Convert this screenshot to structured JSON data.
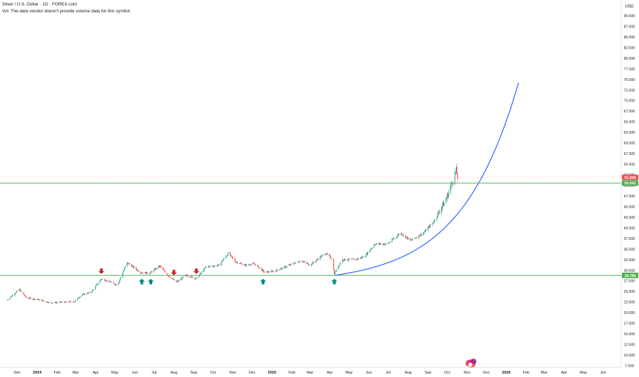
{
  "header": {
    "title": "Silver / U.S. Dollar · 1D · FOREX.com",
    "volume_note": "Vol: The data vendor doesn't provide volume data for this symbol."
  },
  "chart_data": {
    "type": "candlestick",
    "symbol": "Silver / U.S. Dollar",
    "interval": "1D",
    "source": "FOREX.com",
    "currency_label": "USD",
    "ylim": [
      7.5,
      92.5
    ],
    "y_ticks": [
      7.5,
      10,
      12.5,
      15,
      17.5,
      20,
      22.5,
      25,
      27.5,
      30,
      32.5,
      35,
      37.5,
      40,
      42.5,
      45,
      47.5,
      50,
      52.5,
      55,
      57.5,
      60,
      62.5,
      65,
      67.5,
      70,
      72.5,
      75,
      77.5,
      80,
      82.5,
      85,
      87.5,
      90
    ],
    "x_axis_labels": [
      "Dec",
      "2024",
      "Feb",
      "Mar",
      "Apr",
      "May",
      "Jun",
      "Jul",
      "Aug",
      "Sep",
      "Oct",
      "Nov",
      "Dec",
      "2025",
      "Feb",
      "Mar",
      "Apr",
      "May",
      "Jun",
      "Jul",
      "Aug",
      "Sep",
      "Oct",
      "Nov",
      "Dec",
      "2026",
      "Feb",
      "Mar",
      "Apr",
      "May",
      "Jun"
    ],
    "x_axis_bold": [
      "2024",
      "2025",
      "2026"
    ],
    "price_path": [
      [
        "2023-11-15",
        23.0
      ],
      [
        "2023-12-04",
        25.5
      ],
      [
        "2023-12-15",
        23.5
      ],
      [
        "2024-01-05",
        23.0
      ],
      [
        "2024-01-22",
        22.3
      ],
      [
        "2024-02-12",
        22.5
      ],
      [
        "2024-02-28",
        22.6
      ],
      [
        "2024-03-10",
        24.2
      ],
      [
        "2024-03-25",
        24.8
      ],
      [
        "2024-04-10",
        28.0
      ],
      [
        "2024-04-24",
        27.2
      ],
      [
        "2024-05-05",
        26.5
      ],
      [
        "2024-05-20",
        31.8
      ],
      [
        "2024-06-01",
        30.5
      ],
      [
        "2024-06-10",
        29.5
      ],
      [
        "2024-06-24",
        29.3
      ],
      [
        "2024-07-10",
        31.0
      ],
      [
        "2024-07-25",
        28.5
      ],
      [
        "2024-08-05",
        27.2
      ],
      [
        "2024-08-20",
        28.8
      ],
      [
        "2024-09-05",
        28.0
      ],
      [
        "2024-09-20",
        30.8
      ],
      [
        "2024-10-10",
        31.2
      ],
      [
        "2024-10-25",
        34.0
      ],
      [
        "2024-11-05",
        32.0
      ],
      [
        "2024-11-20",
        31.2
      ],
      [
        "2024-12-05",
        31.5
      ],
      [
        "2024-12-20",
        29.5
      ],
      [
        "2025-01-05",
        29.8
      ],
      [
        "2025-01-25",
        31.0
      ],
      [
        "2025-02-15",
        32.3
      ],
      [
        "2025-03-01",
        31.2
      ],
      [
        "2025-03-25",
        34.0
      ],
      [
        "2025-04-04",
        32.8
      ],
      [
        "2025-04-08",
        29.2
      ],
      [
        "2025-04-20",
        32.5
      ],
      [
        "2025-05-10",
        32.5
      ],
      [
        "2025-05-25",
        33.2
      ],
      [
        "2025-06-10",
        36.2
      ],
      [
        "2025-06-30",
        36.2
      ],
      [
        "2025-07-20",
        38.8
      ],
      [
        "2025-08-05",
        37.0
      ],
      [
        "2025-08-25",
        38.8
      ],
      [
        "2025-09-10",
        41.5
      ],
      [
        "2025-09-30",
        47.0
      ],
      [
        "2025-10-08",
        50.5
      ],
      [
        "2025-10-15",
        53.5
      ],
      [
        "2025-10-17",
        51.9
      ]
    ],
    "horizontal_lines": [
      {
        "price": 50.542,
        "label": "50.542",
        "color": "#4caf50"
      },
      {
        "price": 28.788,
        "label": "28.788",
        "color": "#4caf50"
      }
    ],
    "last_price": {
      "price": 51.898,
      "label": "51.898",
      "color": "#ef5350"
    },
    "curve": {
      "color": "#2962ff",
      "start": [
        "2025-04-08",
        28.8
      ],
      "end": [
        "2026-01-20",
        74.2
      ]
    },
    "markers_down": [
      "2024-04-10",
      "2024-08-01",
      "2024-09-05"
    ],
    "markers_up": [
      "2024-06-12",
      "2024-06-26",
      "2024-12-18",
      "2025-04-08"
    ],
    "colors": {
      "up": "#26a69a",
      "down": "#ef5350",
      "marker_down": "#c62828",
      "marker_up": "#00897b",
      "text": "#131722"
    }
  }
}
